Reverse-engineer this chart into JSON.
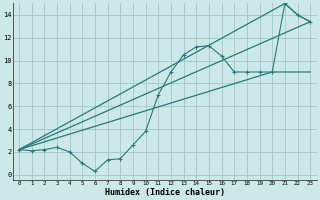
{
  "xlabel": "Humidex (Indice chaleur)",
  "bg_color": "#cce8e8",
  "grid_color": "#aacccc",
  "line_color": "#2a7a7a",
  "xlim": [
    -0.5,
    23.5
  ],
  "ylim": [
    -0.5,
    15.0
  ],
  "xticks": [
    0,
    1,
    2,
    3,
    4,
    5,
    6,
    7,
    8,
    9,
    10,
    11,
    12,
    13,
    14,
    15,
    16,
    17,
    18,
    19,
    20,
    21,
    22,
    23
  ],
  "yticks": [
    0,
    2,
    4,
    6,
    8,
    10,
    12,
    14
  ],
  "line1_x": [
    0,
    1,
    2,
    3,
    4,
    5,
    6,
    7,
    8,
    9,
    10,
    11,
    12,
    13,
    14,
    15,
    16,
    17,
    18,
    19,
    20,
    21,
    22,
    23
  ],
  "line1_y": [
    2.2,
    2.1,
    2.2,
    2.4,
    2.0,
    1.0,
    0.3,
    1.3,
    1.4,
    2.6,
    3.8,
    7.0,
    9.0,
    10.5,
    11.2,
    11.3,
    10.4,
    9.0,
    9.0,
    9.0,
    9.0,
    15.0,
    14.0,
    13.4
  ],
  "line2_x": [
    0,
    21,
    22,
    23
  ],
  "line2_y": [
    2.2,
    15.0,
    14.0,
    13.4
  ],
  "line3_x": [
    0,
    23
  ],
  "line3_y": [
    2.2,
    13.4
  ],
  "line4_x": [
    0,
    20,
    23
  ],
  "line4_y": [
    2.2,
    9.0,
    9.0
  ]
}
